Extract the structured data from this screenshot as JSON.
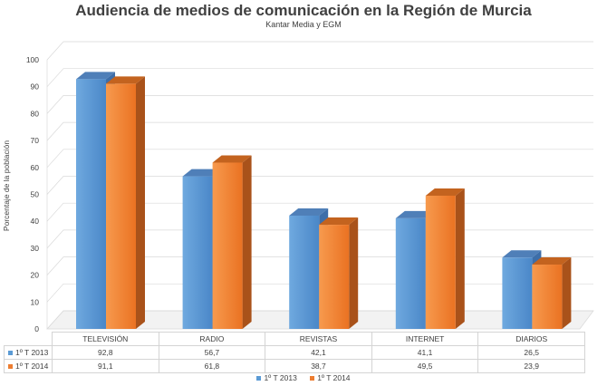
{
  "chart_data": {
    "type": "bar",
    "title": "Audiencia de medios de comunicación en la Región de Murcia",
    "subtitle": "Kantar Media y EGM",
    "ylabel": "Porcentaje de la población",
    "xlabel": "",
    "ylim": [
      0,
      100
    ],
    "yticks": [
      "0",
      "10",
      "20",
      "30",
      "40",
      "50",
      "60",
      "70",
      "80",
      "90",
      "100"
    ],
    "categories": [
      "TELEVISIÓN",
      "RADIO",
      "REVISTAS",
      "INTERNET",
      "DIARIOS"
    ],
    "series": [
      {
        "name": "1º T 2013",
        "values": [
          92.8,
          56.7,
          42.1,
          41.1,
          26.5
        ],
        "labels": [
          "92,8",
          "56,7",
          "42,1",
          "41,1",
          "26,5"
        ],
        "color": "#5b9bd5"
      },
      {
        "name": "1º T 2014",
        "values": [
          91.1,
          61.8,
          38.7,
          49.5,
          23.9
        ],
        "labels": [
          "91,1",
          "61,8",
          "38,7",
          "49,5",
          "23,9"
        ],
        "color": "#ed7d31"
      }
    ],
    "grid": true,
    "style": "3d-clustered-column",
    "data_table": true,
    "legend_position": "bottom"
  }
}
